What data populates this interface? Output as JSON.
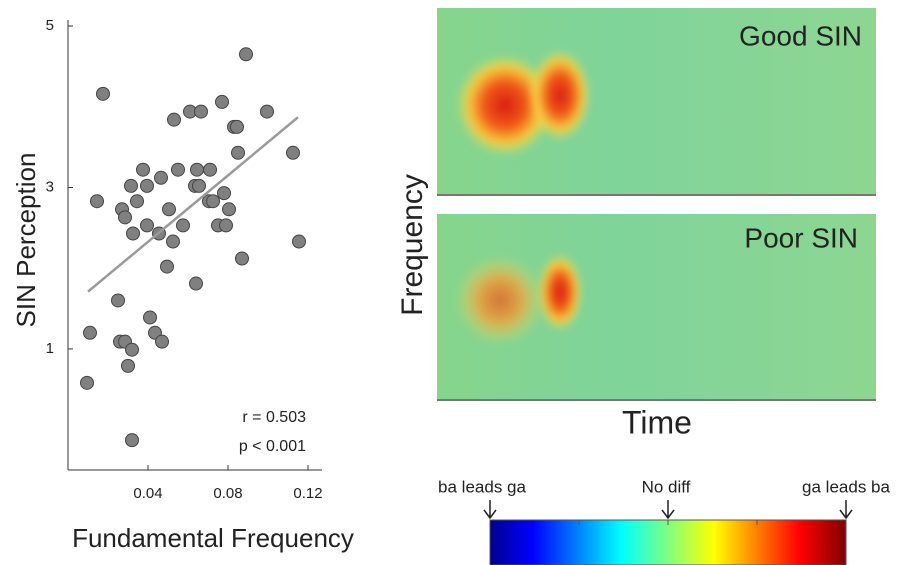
{
  "chart_data": [
    {
      "type": "scatter",
      "xlabel": "Fundamental Frequency",
      "ylabel": "SIN Perception",
      "xlim": [
        0,
        0.126
      ],
      "ylim": [
        -0.5,
        5.05
      ],
      "xticks": [
        0.04,
        0.08,
        0.12
      ],
      "yticks": [
        1,
        3,
        5
      ],
      "color": "#808080",
      "x": [
        0.0095,
        0.011,
        0.0145,
        0.0175,
        0.025,
        0.026,
        0.027,
        0.0285,
        0.0285,
        0.03,
        0.0315,
        0.032,
        0.0325,
        0.032,
        0.0345,
        0.0375,
        0.0395,
        0.0395,
        0.041,
        0.0435,
        0.0455,
        0.0465,
        0.047,
        0.0495,
        0.0505,
        0.0525,
        0.053,
        0.055,
        0.0575,
        0.061,
        0.0635,
        0.064,
        0.0645,
        0.0665,
        0.0655,
        0.0705,
        0.071,
        0.0725,
        0.075,
        0.077,
        0.078,
        0.079,
        0.0805,
        0.083,
        0.0845,
        0.085,
        0.087,
        0.089,
        0.0995,
        0.1125,
        0.1155
      ],
      "y": [
        0.58,
        1.2,
        2.83,
        4.16,
        1.6,
        1.09,
        2.73,
        2.63,
        1.09,
        0.79,
        3.02,
        0.99,
        2.43,
        -0.13,
        2.83,
        3.22,
        3.02,
        2.53,
        1.39,
        1.2,
        2.43,
        3.12,
        1.09,
        2.02,
        2.73,
        2.33,
        3.84,
        3.22,
        2.53,
        3.94,
        3.02,
        1.81,
        3.22,
        3.94,
        3.02,
        2.83,
        3.22,
        2.83,
        2.53,
        4.06,
        2.93,
        2.53,
        2.73,
        3.75,
        3.75,
        3.43,
        2.12,
        4.65,
        3.94,
        3.43,
        2.33
      ],
      "fit_line": {
        "x": [
          0.01,
          0.115
        ],
        "y": [
          1.71,
          3.87
        ],
        "color": "#9a9a9a"
      },
      "annotations": [
        "r = 0.503",
        "p < 0.001"
      ]
    },
    {
      "type": "heatmap",
      "xlabel": "Time",
      "ylabel": "Frequency",
      "panels": [
        "Good SIN",
        "Poor SIN"
      ],
      "colorbar_labels": [
        "ba leads ga",
        "No diff",
        "ga leads ba"
      ]
    }
  ]
}
